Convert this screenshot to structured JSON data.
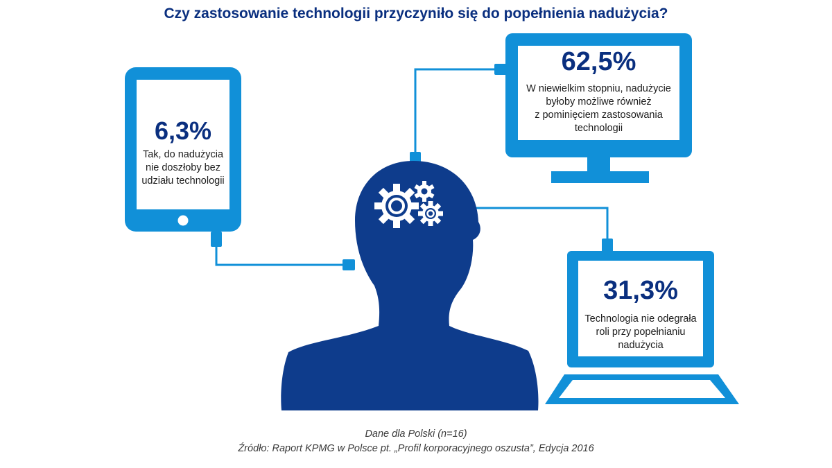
{
  "title": "Czy zastosowanie technologii przyczyniło się do popełnienia nadużycia?",
  "colors": {
    "device_blue": "#1190d8",
    "head_navy": "#0e3c8c",
    "text_navy": "#0a2f7f"
  },
  "icons": {
    "tablet": "tablet-icon",
    "monitor": "monitor-icon",
    "laptop": "laptop-icon",
    "head": "human-head-icon",
    "gears": "gears-icon"
  },
  "items": [
    {
      "device": "tablet",
      "value": "6,3%",
      "description": [
        "Tak, do nadużycia",
        "nie doszłoby bez",
        "udziału technologii"
      ]
    },
    {
      "device": "monitor",
      "value": "62,5%",
      "description": [
        "W niewielkim stopniu, nadużycie",
        "byłoby możliwe również",
        "z pominięciem zastosowania",
        "technologii"
      ]
    },
    {
      "device": "laptop",
      "value": "31,3%",
      "description": [
        "Technologia nie odegrała",
        "roli przy popełnianiu",
        "nadużycia"
      ]
    }
  ],
  "footer": {
    "line1": "Dane dla Polski (n=16)",
    "line2": "Źródło: Raport KPMG w Polsce pt. „Profil korporacyjnego oszusta”, Edycja 2016"
  }
}
